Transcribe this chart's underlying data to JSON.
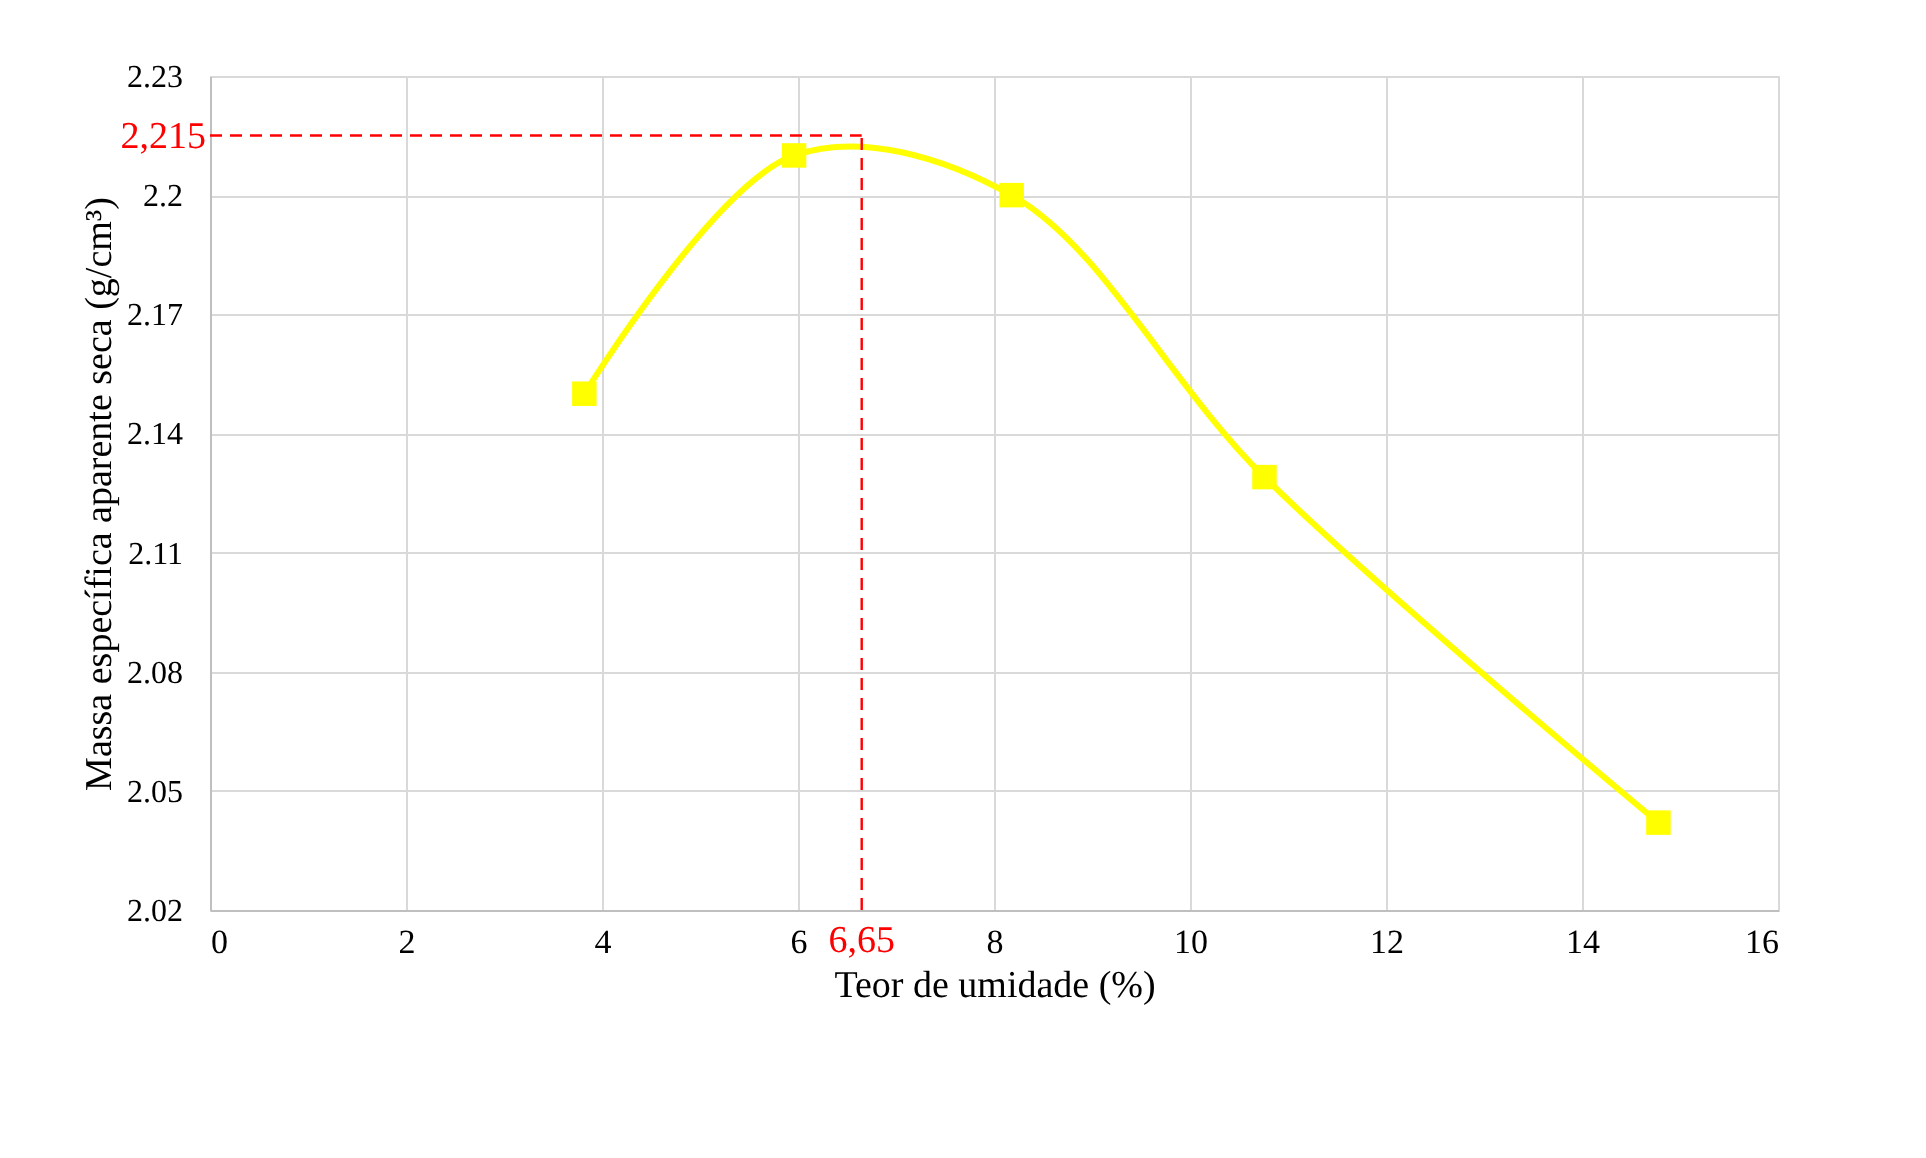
{
  "chart_data": {
    "type": "line",
    "xlabel": "Teor de umidade (%)",
    "ylabel": "Massa específica aparente seca (g/cm³)",
    "x": [
      3.82,
      5.96,
      8.18,
      10.76,
      14.78
    ],
    "series": [
      {
        "color": "#ffff00",
        "values": [
          2.15,
          2.21,
          2.2,
          2.129,
          2.042
        ]
      }
    ],
    "xlim": [
      0,
      16
    ],
    "xticks": [
      0,
      2,
      4,
      6,
      8,
      10,
      12,
      14,
      16
    ],
    "ylim": [
      2.02,
      2.23
    ],
    "yticks": [
      2.02,
      2.05,
      2.08,
      2.11,
      2.14,
      2.17,
      2.2,
      2.23
    ],
    "ref_lines": [
      {
        "axis": "y",
        "value": 2.215,
        "label": "2,215",
        "color": "#ff0000",
        "line_style": "dashed"
      },
      {
        "axis": "x",
        "value": 6.65,
        "label": "6,65",
        "color": "#ff0000",
        "line_style": "dashed"
      }
    ],
    "grid": true,
    "marker": "square",
    "line_style": "solid"
  }
}
